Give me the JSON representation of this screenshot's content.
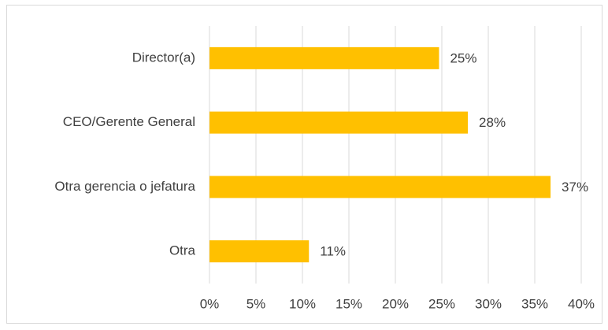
{
  "chart_data": {
    "type": "bar",
    "orientation": "horizontal",
    "categories": [
      "Director(a)",
      "CEO/Gerente General",
      "Otra gerencia o jefatura",
      "Otra"
    ],
    "values": [
      24.7,
      27.8,
      36.7,
      10.7
    ],
    "value_labels": [
      "25%",
      "28%",
      "37%",
      "11%"
    ],
    "color": "#ffc000",
    "xlim": [
      0,
      40
    ],
    "xticks": [
      {
        "value": 0,
        "label": "0%"
      },
      {
        "value": 5,
        "label": "5%"
      },
      {
        "value": 10,
        "label": "10%"
      },
      {
        "value": 15,
        "label": "15%"
      },
      {
        "value": 20,
        "label": "20%"
      },
      {
        "value": 25,
        "label": "25%"
      },
      {
        "value": 30,
        "label": "30%"
      },
      {
        "value": 35,
        "label": "35%"
      },
      {
        "value": 40,
        "label": "40%"
      }
    ],
    "grid": true
  }
}
